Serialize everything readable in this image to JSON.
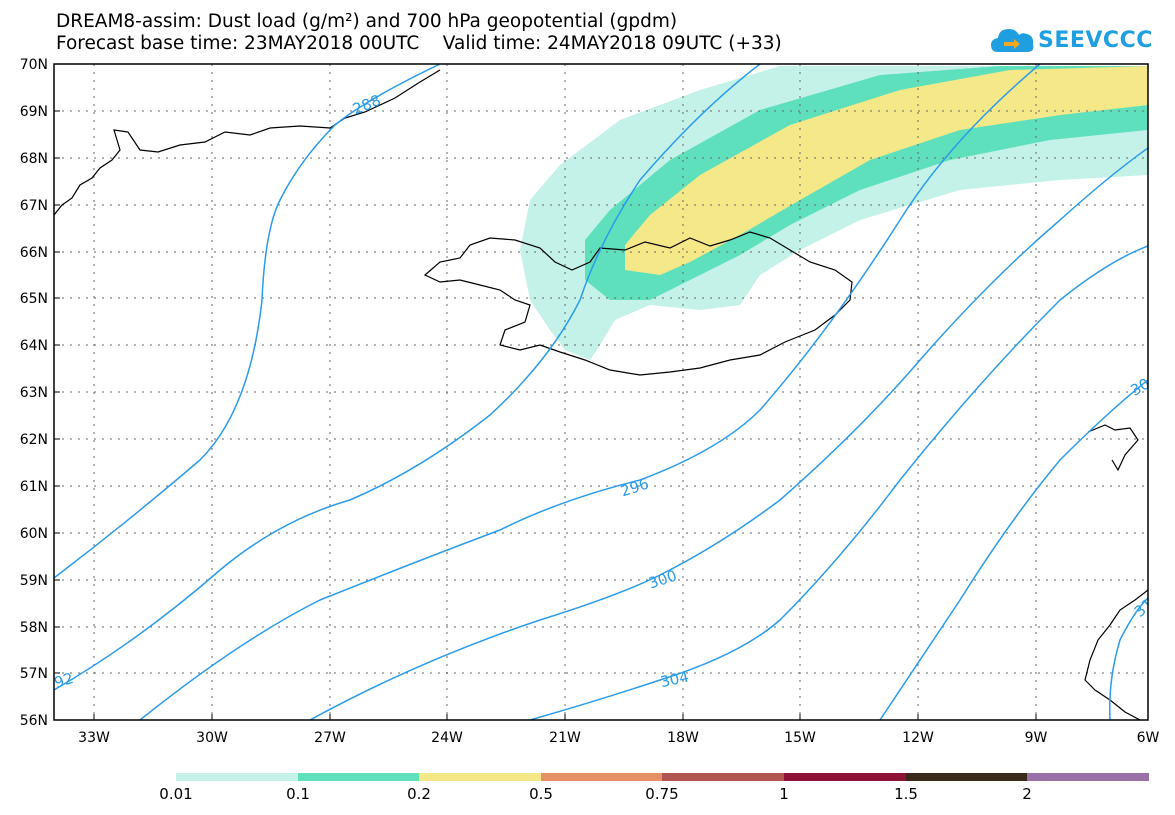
{
  "header": {
    "line1": "DREAM8-assim: Dust load (g/m²) and 700 hPa geopotential (gpdm)",
    "line2": "Forecast base time: 23MAY2018 00UTC    Valid time: 24MAY2018 09UTC (+33)"
  },
  "logo": {
    "text": "SEEVCCC",
    "color": "#1f9fe0"
  },
  "map": {
    "lat_labels": [
      "70N",
      "69N",
      "68N",
      "67N",
      "66N",
      "65N",
      "64N",
      "63N",
      "62N",
      "61N",
      "60N",
      "59N",
      "58N",
      "57N",
      "56N"
    ],
    "lon_labels": [
      "33W",
      "30W",
      "27W",
      "24W",
      "21W",
      "18W",
      "15W",
      "12W",
      "9W",
      "6W"
    ],
    "contour_labels": [
      "288",
      "296",
      "300",
      "304",
      "92",
      "30",
      "31"
    ],
    "contour_color": "#2b9bea",
    "coast_color": "#000000"
  },
  "colorbar": {
    "colors": [
      "#c4f2e8",
      "#5fe0bd",
      "#f5e888",
      "#e69065",
      "#b25550",
      "#8c1238",
      "#3a2a18",
      "#9a70a8"
    ],
    "labels": [
      "0.01",
      "0.1",
      "0.2",
      "0.5",
      "0.75",
      "1",
      "1.5",
      "2"
    ]
  }
}
